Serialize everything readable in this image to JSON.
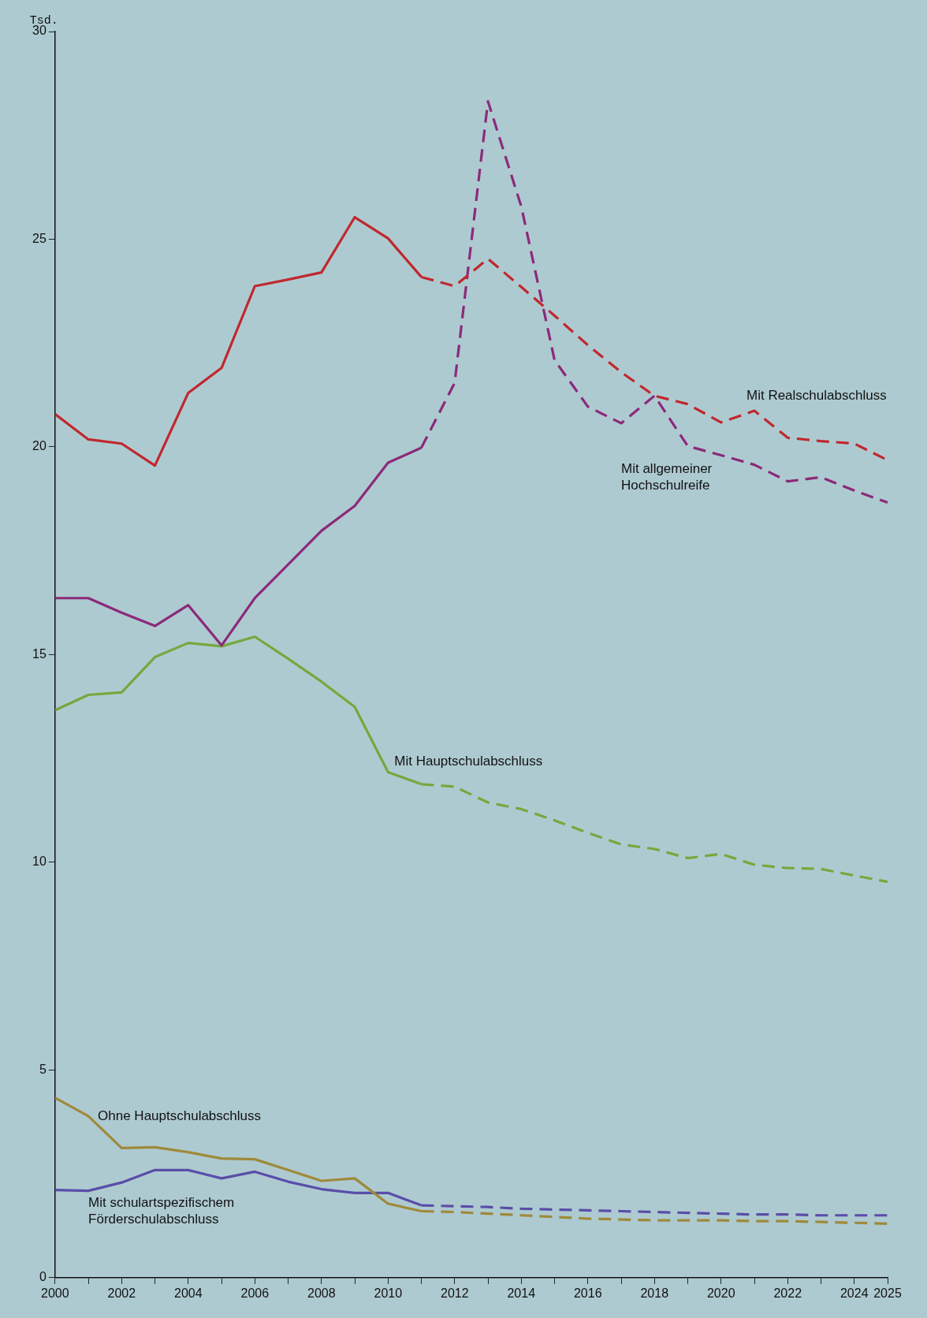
{
  "chart_data": {
    "type": "line",
    "ylabel": "Tsd.",
    "xlim": [
      2000,
      2025
    ],
    "ylim": [
      0,
      30
    ],
    "xticks": [
      2000,
      {
        "value": 2001,
        "label": null
      },
      2002,
      {
        "value": 2003,
        "label": null
      },
      2004,
      {
        "value": 2005,
        "label": null
      },
      2006,
      {
        "value": 2007,
        "label": null
      },
      2008,
      {
        "value": 2009,
        "label": null
      },
      2010,
      {
        "value": 2011,
        "label": null
      },
      2012,
      {
        "value": 2013,
        "label": null
      },
      2014,
      {
        "value": 2015,
        "label": null
      },
      2016,
      {
        "value": 2017,
        "label": null
      },
      2018,
      {
        "value": 2019,
        "label": null
      },
      2020,
      {
        "value": 2021,
        "label": null
      },
      2022,
      {
        "value": 2023,
        "label": null
      },
      2024,
      2025
    ],
    "yticks": [
      0,
      5,
      10,
      15,
      20,
      25,
      30
    ],
    "grid": false,
    "legend": false,
    "marker": "none",
    "series": [
      {
        "color": "#c0282d",
        "line_style": "solid",
        "x": [
          2000,
          2001,
          2002,
          2003,
          2004,
          2005,
          2006,
          2007,
          2008,
          2009,
          2010,
          2011
        ],
        "values": [
          20.79,
          20.18,
          20.08,
          19.55,
          21.3,
          21.9,
          23.87,
          24.03,
          24.2,
          25.53,
          25.02,
          24.09
        ]
      },
      {
        "name": "Mit Realschulabschluss",
        "color": "#c0282d",
        "line_style": "dashed",
        "x": [
          2011,
          2012,
          2013,
          2014,
          2015,
          2016,
          2017,
          2018,
          2019,
          2020,
          2021,
          2022,
          2023,
          2024,
          2025
        ],
        "values": [
          24.09,
          23.87,
          24.53,
          23.85,
          23.16,
          22.45,
          21.8,
          21.23,
          21.03,
          20.59,
          20.87,
          20.22,
          20.14,
          20.08,
          19.68
        ]
      },
      {
        "color": "#8b2a7a",
        "line_style": "solid",
        "x": [
          2000,
          2001,
          2002,
          2003,
          2004,
          2005,
          2006,
          2007,
          2008,
          2009,
          2010,
          2011
        ],
        "values": [
          16.36,
          16.36,
          16.01,
          15.69,
          16.19,
          15.22,
          16.36,
          17.17,
          17.98,
          18.58,
          19.62,
          19.98
        ]
      },
      {
        "name": "Mit allgemeiner Hochschulreife",
        "color": "#8b2a7a",
        "line_style": "dashed",
        "x": [
          2011,
          2012,
          2013,
          2014,
          2015,
          2016,
          2017,
          2018,
          2019,
          2020,
          2021,
          2022,
          2023,
          2024,
          2025
        ],
        "values": [
          19.98,
          21.54,
          28.32,
          25.79,
          22.09,
          20.97,
          20.57,
          21.23,
          20.02,
          19.8,
          19.57,
          19.17,
          19.27,
          18.95,
          18.66
        ]
      },
      {
        "name": "Mit Hauptschulabschluss",
        "color": "#76a83c",
        "line_style": "solid",
        "x": [
          2000,
          2001,
          2002,
          2003,
          2004,
          2005,
          2006,
          2007,
          2008,
          2009,
          2010,
          2011
        ],
        "values": [
          13.66,
          14.03,
          14.09,
          14.94,
          15.28,
          15.2,
          15.43,
          14.9,
          14.35,
          13.74,
          12.17,
          11.88
        ]
      },
      {
        "color": "#76a83c",
        "line_style": "dashed",
        "x": [
          2011,
          2012,
          2013,
          2014,
          2015,
          2016,
          2017,
          2018,
          2019,
          2020,
          2021,
          2022,
          2023,
          2024,
          2025
        ],
        "values": [
          11.88,
          11.82,
          11.44,
          11.28,
          11.01,
          10.71,
          10.43,
          10.32,
          10.1,
          10.2,
          9.94,
          9.86,
          9.84,
          9.68,
          9.53
        ]
      },
      {
        "name": "Ohne Hauptschulabschluss",
        "color": "#9e8a3a",
        "line_style": "solid",
        "x": [
          2000,
          2001,
          2002,
          2003,
          2004,
          2005,
          2006,
          2007,
          2008,
          2009,
          2010,
          2011
        ],
        "values": [
          4.33,
          3.89,
          3.12,
          3.14,
          3.02,
          2.87,
          2.85,
          2.59,
          2.33,
          2.39,
          1.78,
          1.6
        ]
      },
      {
        "color": "#9e8a3a",
        "line_style": "dashed",
        "x": [
          2011,
          2012,
          2013,
          2014,
          2015,
          2016,
          2017,
          2018,
          2019,
          2020,
          2021,
          2022,
          2023,
          2024,
          2025
        ],
        "values": [
          1.6,
          1.58,
          1.54,
          1.5,
          1.46,
          1.42,
          1.4,
          1.38,
          1.38,
          1.38,
          1.36,
          1.36,
          1.34,
          1.32,
          1.3
        ]
      },
      {
        "name": "Mit schulartspezifischem Förderschulabschluss",
        "color": "#5a4ea8",
        "line_style": "solid",
        "x": [
          2000,
          2001,
          2002,
          2003,
          2004,
          2005,
          2006,
          2007,
          2008,
          2009,
          2010,
          2011
        ],
        "values": [
          2.11,
          2.09,
          2.29,
          2.59,
          2.59,
          2.39,
          2.55,
          2.31,
          2.13,
          2.04,
          2.04,
          1.74
        ]
      },
      {
        "color": "#5a4ea8",
        "line_style": "dashed",
        "x": [
          2011,
          2012,
          2013,
          2014,
          2015,
          2016,
          2017,
          2018,
          2019,
          2020,
          2021,
          2022,
          2023,
          2024,
          2025
        ],
        "values": [
          1.74,
          1.72,
          1.7,
          1.66,
          1.64,
          1.62,
          1.6,
          1.58,
          1.56,
          1.54,
          1.52,
          1.52,
          1.5,
          1.5,
          1.5
        ]
      }
    ]
  }
}
